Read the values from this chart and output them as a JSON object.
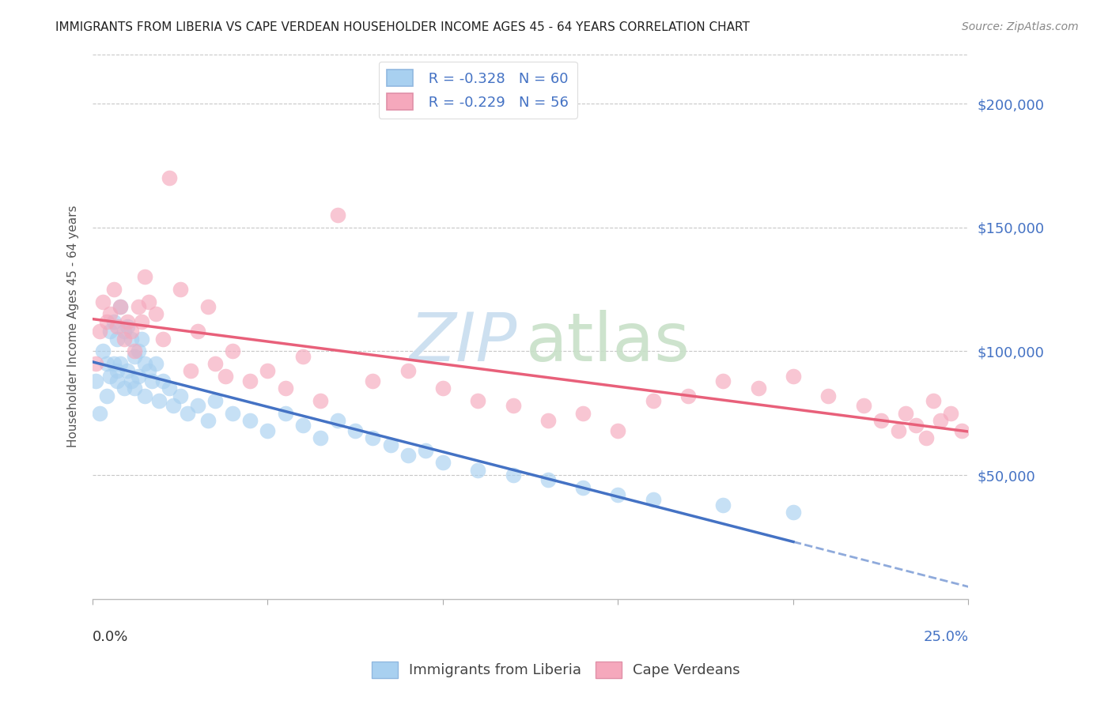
{
  "title": "IMMIGRANTS FROM LIBERIA VS CAPE VERDEAN HOUSEHOLDER INCOME AGES 45 - 64 YEARS CORRELATION CHART",
  "source": "Source: ZipAtlas.com",
  "ylabel": "Householder Income Ages 45 - 64 years",
  "xlim": [
    0.0,
    0.25
  ],
  "ylim": [
    0,
    220000
  ],
  "yticks": [
    0,
    50000,
    100000,
    150000,
    200000
  ],
  "ytick_labels": [
    "",
    "$50,000",
    "$100,000",
    "$150,000",
    "$200,000"
  ],
  "legend_r1": "R = -0.328",
  "legend_n1": "N = 60",
  "legend_r2": "R = -0.229",
  "legend_n2": "N = 56",
  "color_blue": "#A8D0F0",
  "color_pink": "#F5A8BC",
  "color_blue_line": "#4472C4",
  "color_pink_line": "#E8607A",
  "color_grid": "#C8C8C8",
  "color_tick_label": "#4472C4",
  "liberia_x": [
    0.001,
    0.002,
    0.003,
    0.004,
    0.004,
    0.005,
    0.005,
    0.006,
    0.006,
    0.007,
    0.007,
    0.007,
    0.008,
    0.008,
    0.009,
    0.009,
    0.01,
    0.01,
    0.011,
    0.011,
    0.012,
    0.012,
    0.013,
    0.013,
    0.014,
    0.015,
    0.015,
    0.016,
    0.017,
    0.018,
    0.019,
    0.02,
    0.022,
    0.023,
    0.025,
    0.027,
    0.03,
    0.033,
    0.035,
    0.04,
    0.045,
    0.05,
    0.055,
    0.06,
    0.065,
    0.07,
    0.075,
    0.08,
    0.085,
    0.09,
    0.095,
    0.1,
    0.11,
    0.12,
    0.13,
    0.14,
    0.15,
    0.16,
    0.18,
    0.2
  ],
  "liberia_y": [
    88000,
    75000,
    100000,
    95000,
    82000,
    108000,
    90000,
    112000,
    95000,
    105000,
    92000,
    88000,
    118000,
    95000,
    108000,
    85000,
    110000,
    92000,
    105000,
    88000,
    98000,
    85000,
    100000,
    90000,
    105000,
    95000,
    82000,
    92000,
    88000,
    95000,
    80000,
    88000,
    85000,
    78000,
    82000,
    75000,
    78000,
    72000,
    80000,
    75000,
    72000,
    68000,
    75000,
    70000,
    65000,
    72000,
    68000,
    65000,
    62000,
    58000,
    60000,
    55000,
    52000,
    50000,
    48000,
    45000,
    42000,
    40000,
    38000,
    35000
  ],
  "capeverde_x": [
    0.001,
    0.002,
    0.003,
    0.004,
    0.005,
    0.006,
    0.007,
    0.008,
    0.009,
    0.01,
    0.011,
    0.012,
    0.013,
    0.014,
    0.015,
    0.016,
    0.018,
    0.02,
    0.022,
    0.025,
    0.028,
    0.03,
    0.033,
    0.035,
    0.038,
    0.04,
    0.045,
    0.05,
    0.055,
    0.06,
    0.065,
    0.07,
    0.08,
    0.09,
    0.1,
    0.11,
    0.12,
    0.13,
    0.14,
    0.15,
    0.16,
    0.17,
    0.18,
    0.19,
    0.2,
    0.21,
    0.22,
    0.225,
    0.23,
    0.232,
    0.235,
    0.238,
    0.24,
    0.242,
    0.245,
    0.248
  ],
  "capeverde_y": [
    95000,
    108000,
    120000,
    112000,
    115000,
    125000,
    110000,
    118000,
    105000,
    112000,
    108000,
    100000,
    118000,
    112000,
    130000,
    120000,
    115000,
    105000,
    170000,
    125000,
    92000,
    108000,
    118000,
    95000,
    90000,
    100000,
    88000,
    92000,
    85000,
    98000,
    80000,
    155000,
    88000,
    92000,
    85000,
    80000,
    78000,
    72000,
    75000,
    68000,
    80000,
    82000,
    88000,
    85000,
    90000,
    82000,
    78000,
    72000,
    68000,
    75000,
    70000,
    65000,
    80000,
    72000,
    75000,
    68000
  ],
  "background_color": "#ffffff",
  "watermark_zip_color": "#C8DDEF",
  "watermark_atlas_color": "#C8E0C8"
}
